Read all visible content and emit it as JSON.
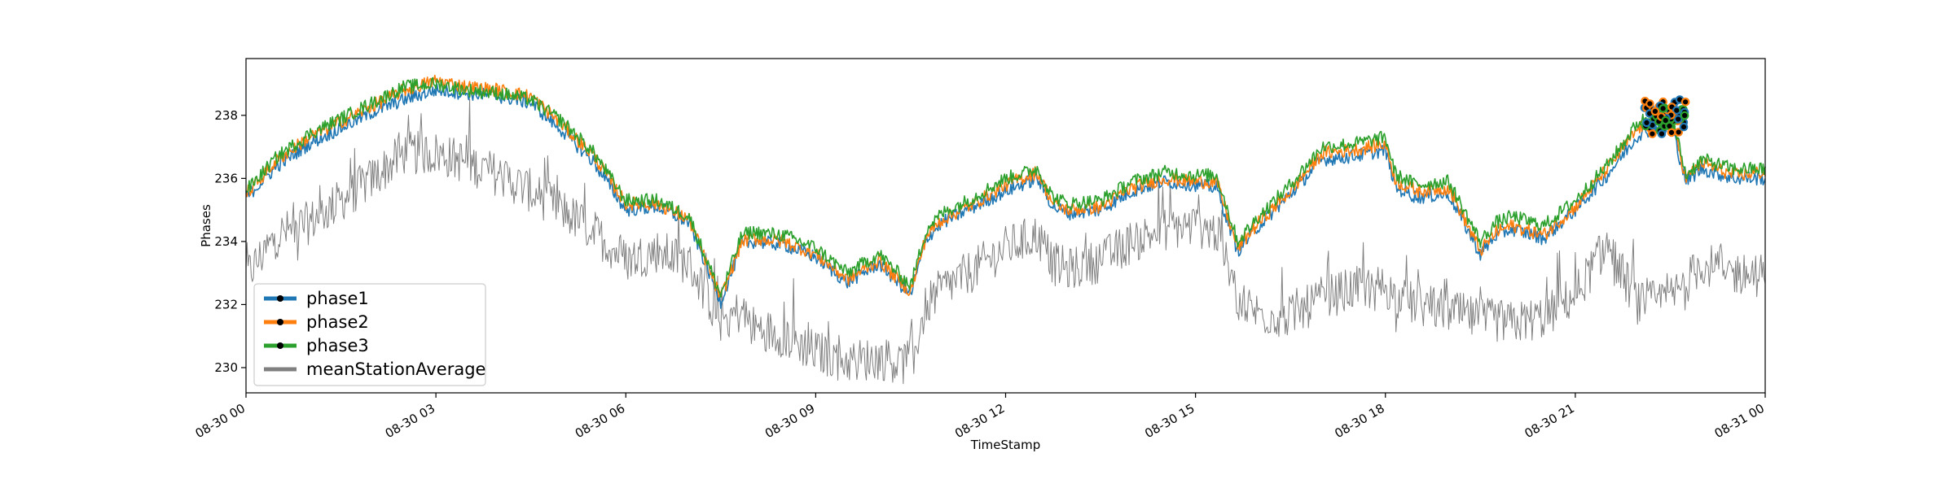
{
  "chart_data": {
    "type": "line",
    "title": "",
    "xlabel": "TimeStamp",
    "ylabel": "Phases",
    "ylim": [
      229.2,
      239.8
    ],
    "xlim": [
      "2019-08-30 00:00",
      "2019-08-31 00:00"
    ],
    "x_ticks": [
      "08-30 00",
      "08-30 03",
      "08-30 06",
      "08-30 09",
      "08-30 12",
      "08-30 15",
      "08-30 18",
      "08-30 21",
      "08-31 00"
    ],
    "y_ticks": [
      230,
      232,
      234,
      236,
      238
    ],
    "grid": false,
    "legend_position": "lower-left",
    "x": [
      "00:00",
      "00:30",
      "01:00",
      "01:30",
      "02:00",
      "02:30",
      "03:00",
      "03:30",
      "04:00",
      "04:30",
      "05:00",
      "05:30",
      "06:00",
      "06:30",
      "07:00",
      "07:30",
      "07:50",
      "08:00",
      "08:30",
      "09:00",
      "09:30",
      "10:00",
      "10:30",
      "10:45",
      "11:00",
      "11:30",
      "12:00",
      "12:30",
      "12:45",
      "13:00",
      "13:30",
      "14:00",
      "14:30",
      "15:00",
      "15:20",
      "15:40",
      "16:00",
      "16:30",
      "17:00",
      "17:30",
      "18:00",
      "18:10",
      "18:30",
      "19:00",
      "19:30",
      "19:45",
      "20:00",
      "20:30",
      "21:00",
      "21:30",
      "22:00",
      "22:30",
      "22:45",
      "23:00",
      "23:30",
      "00:00"
    ],
    "series": [
      {
        "name": "phase1",
        "color": "#1f77b4",
        "values": [
          235.4,
          236.4,
          237.1,
          237.6,
          238.1,
          238.5,
          238.8,
          238.7,
          238.6,
          238.4,
          237.5,
          236.5,
          235.0,
          235.1,
          234.6,
          232.1,
          233.9,
          234.0,
          233.9,
          233.5,
          232.7,
          233.3,
          232.3,
          234.1,
          234.6,
          235.1,
          235.6,
          236.0,
          235.1,
          234.9,
          235.0,
          235.6,
          235.9,
          235.8,
          235.7,
          233.7,
          234.5,
          235.5,
          236.6,
          236.7,
          236.9,
          235.7,
          235.4,
          235.5,
          233.6,
          234.2,
          234.4,
          234.1,
          235.0,
          236.1,
          237.4,
          237.8,
          235.9,
          236.3,
          236.0,
          236.0
        ]
      },
      {
        "name": "phase2",
        "color": "#ff7f0e",
        "values": [
          235.5,
          236.6,
          237.3,
          237.8,
          238.3,
          238.8,
          239.1,
          238.9,
          238.8,
          238.6,
          237.7,
          236.7,
          235.2,
          235.2,
          234.7,
          232.2,
          234.0,
          234.1,
          234.0,
          233.6,
          232.8,
          233.4,
          232.4,
          234.2,
          234.7,
          235.2,
          235.8,
          236.2,
          235.2,
          235.0,
          235.1,
          235.7,
          236.0,
          235.9,
          235.9,
          233.8,
          234.6,
          235.6,
          236.8,
          236.9,
          237.1,
          235.9,
          235.6,
          235.7,
          233.7,
          234.3,
          234.5,
          234.2,
          235.1,
          236.3,
          237.6,
          238.0,
          236.0,
          236.5,
          236.1,
          236.2
        ]
      },
      {
        "name": "phase3",
        "color": "#2ca02c",
        "values": [
          235.6,
          236.7,
          237.4,
          237.9,
          238.4,
          238.9,
          239.0,
          238.8,
          238.7,
          238.5,
          237.8,
          236.8,
          235.3,
          235.3,
          234.8,
          232.3,
          234.2,
          234.3,
          234.2,
          233.8,
          233.0,
          233.6,
          232.6,
          234.4,
          234.9,
          235.4,
          236.0,
          236.3,
          235.4,
          235.2,
          235.3,
          235.9,
          236.2,
          236.1,
          236.1,
          234.0,
          234.8,
          235.8,
          237.0,
          237.1,
          237.3,
          236.1,
          235.8,
          235.9,
          234.0,
          234.6,
          234.8,
          234.5,
          235.3,
          236.4,
          237.8,
          238.2,
          236.1,
          236.6,
          236.3,
          236.3
        ]
      },
      {
        "name": "meanStationAverage",
        "color": "#808080",
        "values": [
          232.9,
          234.2,
          234.6,
          235.3,
          236.0,
          236.8,
          236.8,
          236.5,
          236.1,
          235.6,
          235.0,
          234.3,
          233.4,
          233.7,
          233.3,
          231.5,
          231.8,
          231.3,
          231.0,
          230.5,
          230.2,
          230.3,
          230.1,
          232.0,
          232.5,
          233.1,
          233.8,
          234.2,
          233.3,
          233.1,
          233.4,
          234.0,
          234.4,
          234.5,
          234.3,
          232.2,
          231.7,
          231.6,
          232.2,
          232.5,
          232.6,
          232.2,
          232.0,
          231.8,
          231.5,
          231.5,
          231.4,
          231.6,
          232.3,
          233.9,
          232.0,
          232.2,
          232.7,
          233.3,
          233.0,
          232.9
        ]
      }
    ],
    "markers": {
      "description_free": true,
      "x_range": [
        "22:05",
        "22:45"
      ],
      "y_range": [
        237.4,
        238.5
      ]
    }
  }
}
